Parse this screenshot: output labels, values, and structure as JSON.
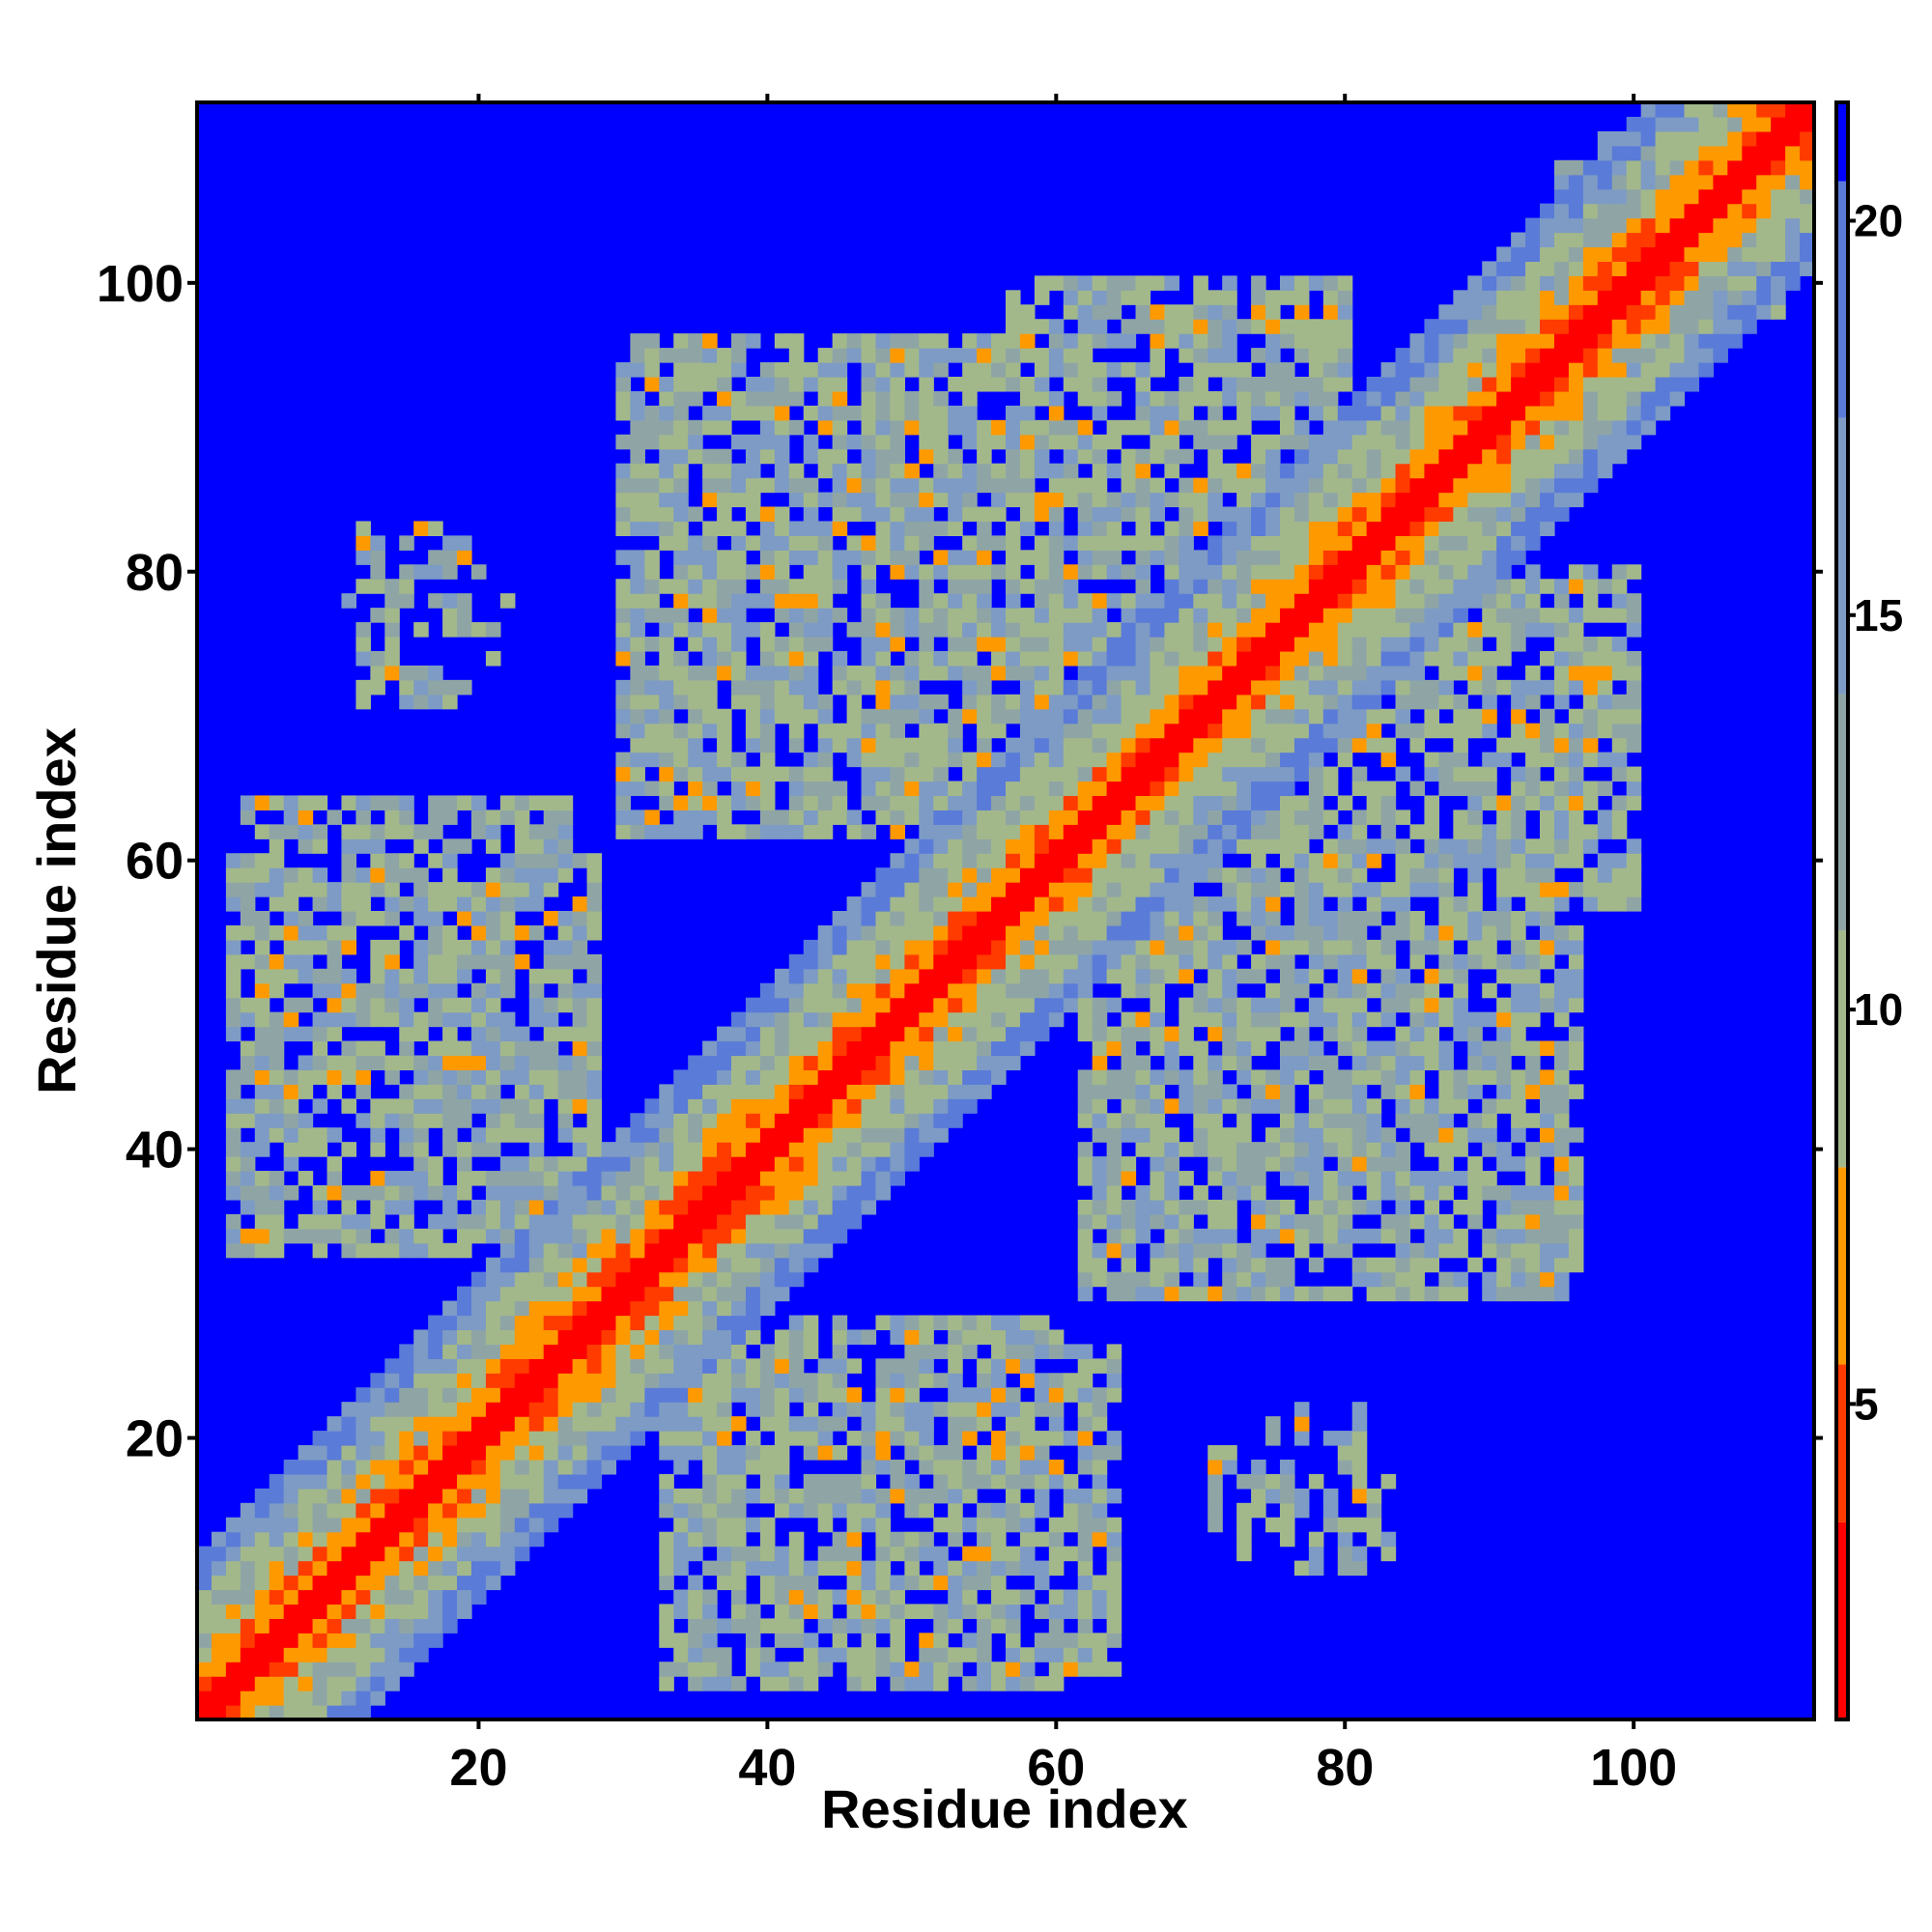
{
  "chart_data": {
    "type": "heatmap",
    "title": "",
    "xlabel": "Residue index",
    "ylabel": "Residue index",
    "n_residues": 112,
    "xlim": [
      1,
      112
    ],
    "ylim": [
      1,
      112
    ],
    "x_ticks": [
      20,
      40,
      60,
      80,
      100
    ],
    "y_ticks": [
      20,
      40,
      60,
      80,
      100
    ],
    "colorbar": {
      "ticks": [
        5,
        10,
        15,
        20
      ],
      "range": [
        1,
        21.5
      ],
      "palette": [
        {
          "max": 3.5,
          "color": "#ff0000"
        },
        {
          "max": 5.5,
          "color": "#ff3b00"
        },
        {
          "max": 8.0,
          "color": "#ff9900"
        },
        {
          "max": 11.0,
          "color": "#a3b88a"
        },
        {
          "max": 14.0,
          "color": "#8fa5a5"
        },
        {
          "max": 17.5,
          "color": "#7d9bc4"
        },
        {
          "max": 20.5,
          "color": "#5a7bd8"
        },
        {
          "max": 99,
          "color": "#0000ff"
        }
      ]
    },
    "colors": {
      "background_cell": "#0000ff",
      "diagonal": "#ff0000",
      "near_diagonal": "#ff9900"
    },
    "contact_blocks": [
      {
        "x": [
          4,
          26
        ],
        "y": [
          36,
          64
        ],
        "density": 0.78
      },
      {
        "x": [
          12,
          19
        ],
        "y": [
          71,
          83
        ],
        "density": 0.5
      },
      {
        "x": [
          30,
          62
        ],
        "y": [
          62,
          96
        ],
        "density": 0.82
      },
      {
        "x": [
          33,
          60
        ],
        "y": [
          68,
          84
        ],
        "density": 0.35,
        "hot": 0.12
      },
      {
        "x": [
          33,
          60
        ],
        "y": [
          3,
          28
        ],
        "density": 0.82
      },
      {
        "x": [
          38,
          56
        ],
        "y": [
          9,
          17
        ],
        "density": 0.3,
        "hot": 0.12
      },
      {
        "x": [
          57,
          80
        ],
        "y": [
          72,
          100
        ],
        "density": 0.78
      },
      {
        "x": [
          62,
          66
        ],
        "y": [
          85,
          92
        ],
        "density": 0.2,
        "hot": 0.55
      },
      {
        "x": [
          68,
          96
        ],
        "y": [
          33,
          62
        ],
        "density": 0.8
      },
      {
        "x": [
          66,
          93
        ],
        "y": [
          32,
          48
        ],
        "density": 0.8
      },
      {
        "x": [
          86,
          94
        ],
        "y": [
          57,
          66
        ],
        "density": 0.2,
        "hot": 0.5
      },
      {
        "x": [
          74,
          81
        ],
        "y": [
          11,
          22
        ],
        "density": 0.35
      },
      {
        "x": [
          85,
          98
        ],
        "y": [
          66,
          80
        ],
        "density": 0.75
      },
      {
        "x": [
          95,
          110
        ],
        "y": [
          98,
          108
        ],
        "density": 0.6
      }
    ]
  }
}
